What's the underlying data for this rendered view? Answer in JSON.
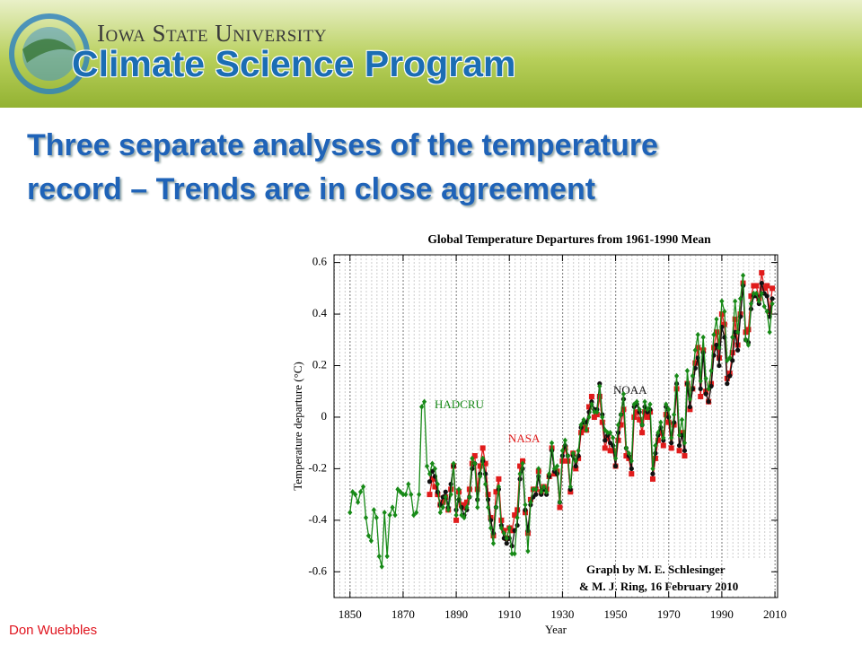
{
  "header": {
    "university": "Iowa State University",
    "program": "Climate Science Program"
  },
  "slide_title": [
    "Three separate analyses of the temperature",
    "record – Trends are in close agreement"
  ],
  "footer": "Don Wuebbles",
  "chart_data": {
    "type": "line",
    "title": "Global Temperature Departures from 1961-1990 Mean",
    "xlabel": "Year",
    "ylabel": "Temperature departure (°C)",
    "annotation": [
      "Graph by M. E. Schlesinger",
      "& M. J. Ring, 16 February 2010"
    ],
    "xlim": [
      1844,
      2011
    ],
    "ylim": [
      -0.7,
      0.63
    ],
    "xticks": [
      1850,
      1870,
      1890,
      1910,
      1930,
      1950,
      1970,
      1990,
      2010
    ],
    "yticks": [
      -0.6,
      -0.4,
      -0.2,
      0,
      0.2,
      0.4,
      0.6
    ],
    "grid": true,
    "x": [
      1850,
      1851,
      1852,
      1853,
      1854,
      1855,
      1856,
      1857,
      1858,
      1859,
      1860,
      1861,
      1862,
      1863,
      1864,
      1865,
      1866,
      1867,
      1868,
      1869,
      1870,
      1871,
      1872,
      1873,
      1874,
      1875,
      1876,
      1877,
      1878,
      1879,
      1880,
      1881,
      1882,
      1883,
      1884,
      1885,
      1886,
      1887,
      1888,
      1889,
      1890,
      1891,
      1892,
      1893,
      1894,
      1895,
      1896,
      1897,
      1898,
      1899,
      1900,
      1901,
      1902,
      1903,
      1904,
      1905,
      1906,
      1907,
      1908,
      1909,
      1910,
      1911,
      1912,
      1913,
      1914,
      1915,
      1916,
      1917,
      1918,
      1919,
      1920,
      1921,
      1922,
      1923,
      1924,
      1925,
      1926,
      1927,
      1928,
      1929,
      1930,
      1931,
      1932,
      1933,
      1934,
      1935,
      1936,
      1937,
      1938,
      1939,
      1940,
      1941,
      1942,
      1943,
      1944,
      1945,
      1946,
      1947,
      1948,
      1949,
      1950,
      1951,
      1952,
      1953,
      1954,
      1955,
      1956,
      1957,
      1958,
      1959,
      1960,
      1961,
      1962,
      1963,
      1964,
      1965,
      1966,
      1967,
      1968,
      1969,
      1970,
      1971,
      1972,
      1973,
      1974,
      1975,
      1976,
      1977,
      1978,
      1979,
      1980,
      1981,
      1982,
      1983,
      1984,
      1985,
      1986,
      1987,
      1988,
      1989,
      1990,
      1991,
      1992,
      1993,
      1994,
      1995,
      1996,
      1997,
      1998,
      1999,
      2000,
      2001,
      2002,
      2003,
      2004,
      2005,
      2006,
      2007,
      2008,
      2009
    ],
    "series": [
      {
        "name": "NASA",
        "color": "#e01b1b",
        "values": [
          null,
          null,
          null,
          null,
          null,
          null,
          null,
          null,
          null,
          null,
          null,
          null,
          null,
          null,
          null,
          null,
          null,
          null,
          null,
          null,
          null,
          null,
          null,
          null,
          null,
          null,
          null,
          null,
          null,
          null,
          -0.3,
          -0.24,
          -0.27,
          -0.3,
          -0.34,
          -0.33,
          -0.31,
          -0.36,
          -0.28,
          -0.19,
          -0.4,
          -0.29,
          -0.34,
          -0.35,
          -0.33,
          -0.28,
          -0.18,
          -0.15,
          -0.28,
          -0.19,
          -0.12,
          -0.18,
          -0.3,
          -0.39,
          -0.46,
          -0.29,
          -0.24,
          -0.4,
          -0.44,
          -0.47,
          -0.43,
          -0.44,
          -0.38,
          -0.36,
          -0.19,
          -0.17,
          -0.37,
          -0.45,
          -0.32,
          -0.28,
          -0.28,
          -0.21,
          -0.29,
          -0.27,
          -0.28,
          -0.23,
          -0.12,
          -0.22,
          -0.21,
          -0.35,
          -0.17,
          -0.12,
          -0.17,
          -0.29,
          -0.14,
          -0.2,
          -0.16,
          -0.06,
          -0.04,
          -0.05,
          0.04,
          0.08,
          0.0,
          0.01,
          0.08,
          -0.02,
          -0.12,
          -0.08,
          -0.13,
          -0.13,
          -0.19,
          -0.09,
          -0.03,
          0.03,
          -0.15,
          -0.16,
          -0.22,
          0.0,
          0.02,
          -0.01,
          -0.06,
          0.02,
          0.0,
          0.02,
          -0.24,
          -0.16,
          -0.09,
          -0.06,
          -0.11,
          0.01,
          -0.02,
          -0.12,
          -0.03,
          0.11,
          -0.13,
          -0.06,
          -0.15,
          0.13,
          0.03,
          0.11,
          0.21,
          0.27,
          0.08,
          0.26,
          0.1,
          0.06,
          0.13,
          0.27,
          0.33,
          0.23,
          0.4,
          0.36,
          0.15,
          0.17,
          0.25,
          0.38,
          0.28,
          0.4,
          0.52,
          0.33,
          0.34,
          0.47,
          0.51,
          0.51,
          0.46,
          0.56,
          0.5,
          0.51,
          0.41,
          0.5
        ]
      },
      {
        "name": "NOAA",
        "color": "#111111",
        "values": [
          null,
          null,
          null,
          null,
          null,
          null,
          null,
          null,
          null,
          null,
          null,
          null,
          null,
          null,
          null,
          null,
          null,
          null,
          null,
          null,
          null,
          null,
          null,
          null,
          null,
          null,
          null,
          null,
          null,
          null,
          -0.25,
          -0.21,
          -0.23,
          -0.29,
          -0.34,
          -0.31,
          -0.29,
          -0.35,
          -0.26,
          -0.19,
          -0.36,
          -0.32,
          -0.35,
          -0.38,
          -0.36,
          -0.31,
          -0.2,
          -0.18,
          -0.32,
          -0.22,
          -0.17,
          -0.22,
          -0.32,
          -0.4,
          -0.45,
          -0.35,
          -0.28,
          -0.42,
          -0.47,
          -0.49,
          -0.47,
          -0.5,
          -0.44,
          -0.42,
          -0.24,
          -0.2,
          -0.36,
          -0.44,
          -0.34,
          -0.31,
          -0.3,
          -0.23,
          -0.3,
          -0.28,
          -0.3,
          -0.23,
          -0.13,
          -0.21,
          -0.22,
          -0.33,
          -0.15,
          -0.11,
          -0.15,
          -0.28,
          -0.15,
          -0.19,
          -0.15,
          -0.04,
          -0.02,
          -0.02,
          0.02,
          0.06,
          0.03,
          0.03,
          0.13,
          0.01,
          -0.09,
          -0.07,
          -0.1,
          -0.11,
          -0.19,
          -0.06,
          0.01,
          0.07,
          -0.12,
          -0.15,
          -0.2,
          0.04,
          0.05,
          0.02,
          -0.03,
          0.04,
          0.02,
          0.03,
          -0.22,
          -0.14,
          -0.07,
          -0.04,
          -0.09,
          0.04,
          0.0,
          -0.1,
          -0.02,
          0.13,
          -0.11,
          -0.07,
          -0.13,
          0.13,
          0.04,
          0.11,
          0.19,
          0.23,
          0.11,
          0.25,
          0.09,
          0.06,
          0.12,
          0.24,
          0.28,
          0.2,
          0.35,
          0.31,
          0.13,
          0.16,
          0.22,
          0.33,
          0.26,
          0.39,
          0.51,
          0.3,
          0.29,
          0.42,
          0.47,
          0.47,
          0.44,
          0.52,
          0.48,
          0.47,
          0.39,
          0.46
        ]
      },
      {
        "name": "HADCRU",
        "color": "#178a17",
        "values": [
          -0.37,
          -0.29,
          -0.3,
          -0.33,
          -0.29,
          -0.27,
          -0.39,
          -0.46,
          -0.48,
          -0.36,
          -0.39,
          -0.54,
          -0.58,
          -0.37,
          -0.54,
          -0.38,
          -0.35,
          -0.38,
          -0.28,
          -0.29,
          -0.3,
          -0.3,
          -0.26,
          -0.3,
          -0.38,
          -0.37,
          -0.3,
          0.04,
          0.06,
          -0.19,
          -0.22,
          -0.18,
          -0.2,
          -0.26,
          -0.37,
          -0.35,
          -0.31,
          -0.36,
          -0.3,
          -0.18,
          -0.38,
          -0.28,
          -0.38,
          -0.39,
          -0.35,
          -0.31,
          -0.16,
          -0.18,
          -0.35,
          -0.23,
          -0.16,
          -0.26,
          -0.35,
          -0.43,
          -0.49,
          -0.35,
          -0.27,
          -0.43,
          -0.45,
          -0.47,
          -0.43,
          -0.53,
          -0.53,
          -0.39,
          -0.22,
          -0.18,
          -0.34,
          -0.52,
          -0.33,
          -0.28,
          -0.28,
          -0.2,
          -0.29,
          -0.27,
          -0.29,
          -0.22,
          -0.1,
          -0.2,
          -0.19,
          -0.33,
          -0.13,
          -0.09,
          -0.15,
          -0.27,
          -0.14,
          -0.17,
          -0.13,
          -0.03,
          -0.01,
          -0.05,
          0.0,
          0.05,
          0.02,
          0.02,
          0.12,
          0.0,
          -0.05,
          -0.06,
          -0.06,
          -0.08,
          -0.16,
          -0.03,
          0.01,
          0.09,
          -0.12,
          -0.14,
          -0.17,
          0.05,
          0.06,
          0.03,
          -0.03,
          0.06,
          0.03,
          0.05,
          -0.2,
          -0.11,
          -0.06,
          -0.02,
          -0.08,
          0.05,
          0.03,
          -0.08,
          0.01,
          0.16,
          -0.07,
          -0.01,
          -0.1,
          0.18,
          0.07,
          0.16,
          0.26,
          0.32,
          0.14,
          0.31,
          0.15,
          0.11,
          0.18,
          0.32,
          0.38,
          0.27,
          0.45,
          0.41,
          0.22,
          0.23,
          0.31,
          0.45,
          0.33,
          0.46,
          0.55,
          0.3,
          0.28,
          0.44,
          0.48,
          0.48,
          0.45,
          0.48,
          0.43,
          0.41,
          0.33,
          0.44
        ]
      }
    ]
  }
}
